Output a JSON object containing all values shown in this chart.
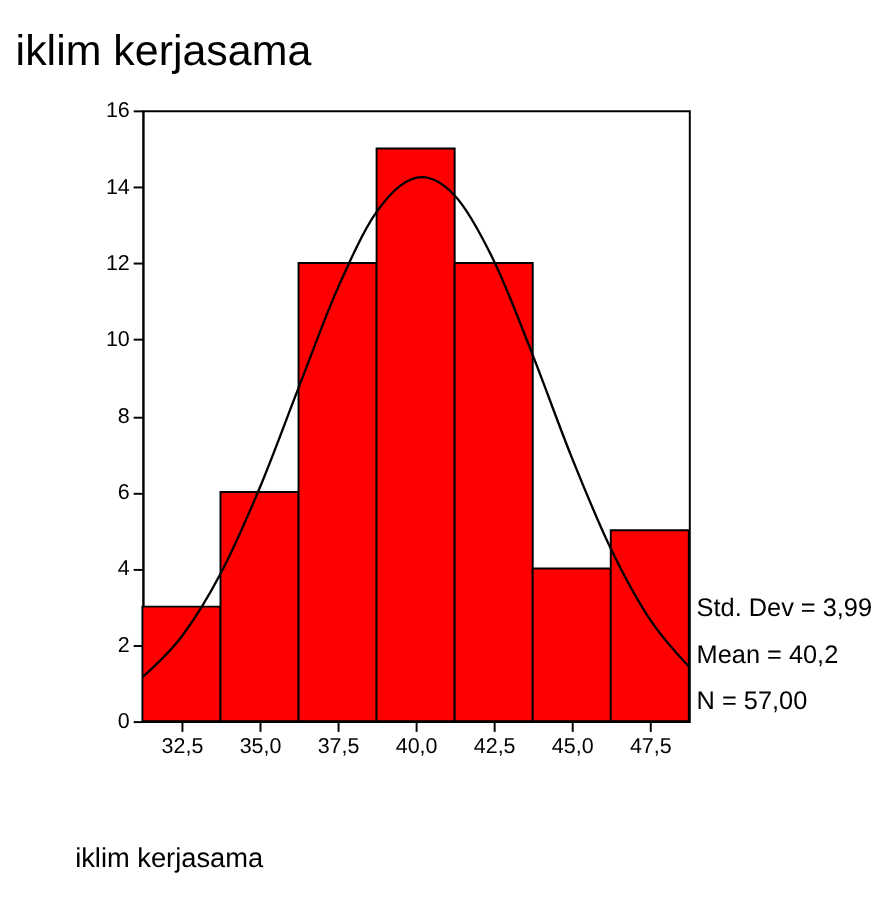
{
  "chart_data": {
    "type": "histogram",
    "title": "iklim kerjasama",
    "xlabel": "iklim kerjasama",
    "bins": [
      31.25,
      33.75,
      36.25,
      38.75,
      41.25,
      43.75,
      46.25,
      48.75
    ],
    "values": [
      3,
      6,
      12,
      15,
      12,
      4,
      5
    ],
    "color": "#ff0000",
    "series": [
      {
        "type": "line",
        "color": "#000000",
        "x": [
          31.25,
          32.5,
          33.75,
          35,
          36.25,
          37.5,
          38.75,
          40.2,
          41.25,
          42.5,
          43.75,
          45,
          46.25,
          47.5,
          48.75
        ],
        "values": [
          1.15,
          2.21,
          3.86,
          6.1,
          8.73,
          11.33,
          13.34,
          14.25,
          13.77,
          12.07,
          9.59,
          6.91,
          4.52,
          2.67,
          1.43
        ]
      }
    ],
    "xlim": [
      31.25,
      48.75
    ],
    "xticks": [
      {
        "value": 32.5,
        "label": "32,5"
      },
      {
        "value": 35,
        "label": "35,0"
      },
      {
        "value": 37.5,
        "label": "37,5"
      },
      {
        "value": 40,
        "label": "40,0"
      },
      {
        "value": 42.5,
        "label": "42,5"
      },
      {
        "value": 45,
        "label": "45,0"
      },
      {
        "value": 47.5,
        "label": "47,5"
      }
    ],
    "ylim": [
      0,
      16
    ],
    "yticks": [
      0,
      2,
      4,
      6,
      8,
      10,
      12,
      14,
      16
    ],
    "annotations": [
      "Std. Dev = 3,99",
      "Mean = 40,2",
      "N = 57,00"
    ],
    "grid": false
  }
}
